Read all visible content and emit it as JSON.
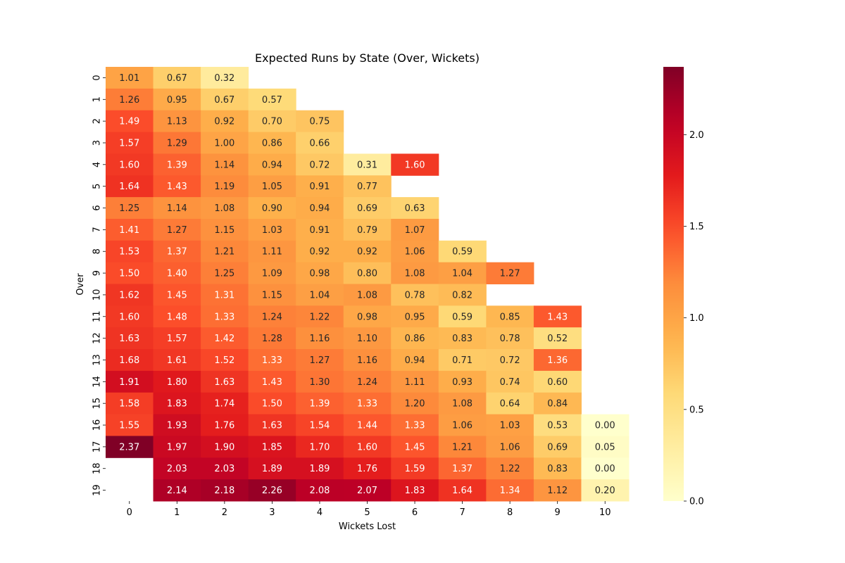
{
  "chart_data": {
    "type": "heatmap",
    "title": "Expected Runs by State (Over, Wickets)",
    "xlabel": "Wickets Lost",
    "ylabel": "Over",
    "x_categories": [
      "0",
      "1",
      "2",
      "3",
      "4",
      "5",
      "6",
      "7",
      "8",
      "9",
      "10"
    ],
    "y_categories": [
      "0",
      "1",
      "2",
      "3",
      "4",
      "5",
      "6",
      "7",
      "8",
      "9",
      "10",
      "11",
      "12",
      "13",
      "14",
      "15",
      "16",
      "17",
      "18",
      "19"
    ],
    "value_range": [
      0,
      2.37
    ],
    "colormap": "YlOrRd",
    "colorbar_ticks": [
      "0.0",
      "0.5",
      "1.0",
      "1.5",
      "2.0"
    ],
    "values": [
      [
        1.01,
        0.67,
        0.32,
        null,
        null,
        null,
        null,
        null,
        null,
        null,
        null
      ],
      [
        1.26,
        0.95,
        0.67,
        0.57,
        null,
        null,
        null,
        null,
        null,
        null,
        null
      ],
      [
        1.49,
        1.13,
        0.92,
        0.7,
        0.75,
        null,
        null,
        null,
        null,
        null,
        null
      ],
      [
        1.57,
        1.29,
        1.0,
        0.86,
        0.66,
        null,
        null,
        null,
        null,
        null,
        null
      ],
      [
        1.6,
        1.39,
        1.14,
        0.94,
        0.72,
        0.31,
        1.6,
        null,
        null,
        null,
        null
      ],
      [
        1.64,
        1.43,
        1.19,
        1.05,
        0.91,
        0.77,
        null,
        null,
        null,
        null,
        null
      ],
      [
        1.25,
        1.14,
        1.08,
        0.9,
        0.94,
        0.69,
        0.63,
        null,
        null,
        null,
        null
      ],
      [
        1.41,
        1.27,
        1.15,
        1.03,
        0.91,
        0.79,
        1.07,
        null,
        null,
        null,
        null
      ],
      [
        1.53,
        1.37,
        1.21,
        1.11,
        0.92,
        0.92,
        1.06,
        0.59,
        null,
        null,
        null
      ],
      [
        1.5,
        1.4,
        1.25,
        1.09,
        0.98,
        0.8,
        1.08,
        1.04,
        1.27,
        null,
        null
      ],
      [
        1.62,
        1.45,
        1.31,
        1.15,
        1.04,
        1.08,
        0.78,
        0.82,
        null,
        null,
        null
      ],
      [
        1.6,
        1.48,
        1.33,
        1.24,
        1.22,
        0.98,
        0.95,
        0.59,
        0.85,
        1.43,
        null
      ],
      [
        1.63,
        1.57,
        1.42,
        1.28,
        1.16,
        1.1,
        0.86,
        0.83,
        0.78,
        0.52,
        null
      ],
      [
        1.68,
        1.61,
        1.52,
        1.33,
        1.27,
        1.16,
        0.94,
        0.71,
        0.72,
        1.36,
        null
      ],
      [
        1.91,
        1.8,
        1.63,
        1.43,
        1.3,
        1.24,
        1.11,
        0.93,
        0.74,
        0.6,
        null
      ],
      [
        1.58,
        1.83,
        1.74,
        1.5,
        1.39,
        1.33,
        1.2,
        1.08,
        0.64,
        0.84,
        null
      ],
      [
        1.55,
        1.93,
        1.76,
        1.63,
        1.54,
        1.44,
        1.33,
        1.06,
        1.03,
        0.53,
        0.0
      ],
      [
        2.37,
        1.97,
        1.9,
        1.85,
        1.7,
        1.6,
        1.45,
        1.21,
        1.06,
        0.69,
        0.05
      ],
      [
        null,
        2.03,
        2.03,
        1.89,
        1.89,
        1.76,
        1.59,
        1.37,
        1.22,
        0.83,
        0.0
      ],
      [
        null,
        2.14,
        2.18,
        2.26,
        2.08,
        2.07,
        1.83,
        1.64,
        1.34,
        1.12,
        0.2
      ]
    ]
  }
}
